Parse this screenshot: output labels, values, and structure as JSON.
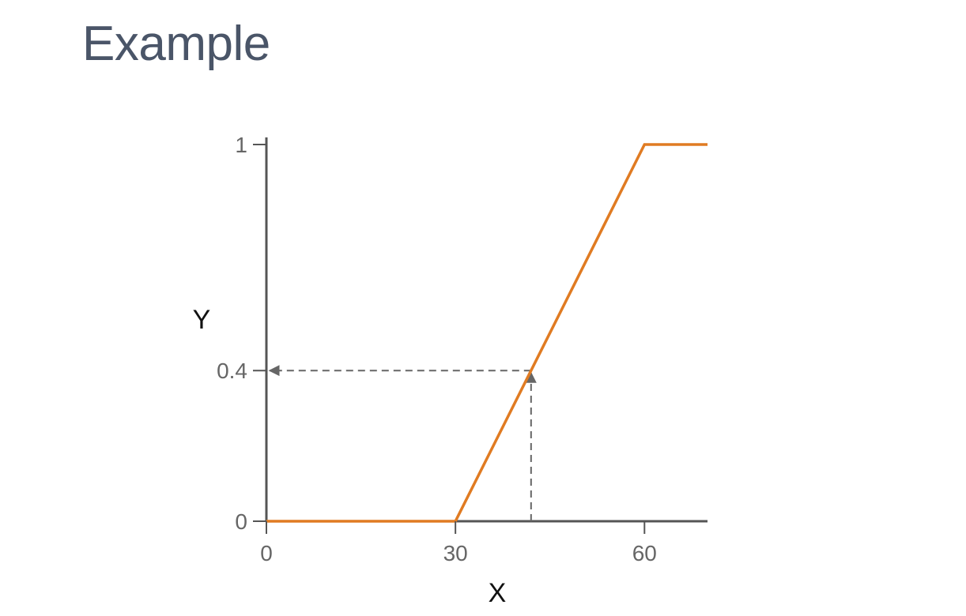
{
  "header": {
    "title": "Example"
  },
  "chart_data": {
    "type": "line",
    "xlabel": "X",
    "ylabel": "Y",
    "xlim": [
      0,
      70
    ],
    "ylim": [
      0,
      1
    ],
    "x_ticks": [
      {
        "value": 0,
        "label": "0"
      },
      {
        "value": 30,
        "label": "30"
      },
      {
        "value": 60,
        "label": "60"
      }
    ],
    "y_ticks": [
      {
        "value": 0,
        "label": "0"
      },
      {
        "value": 0.4,
        "label": "0.4"
      },
      {
        "value": 1,
        "label": "1"
      }
    ],
    "series": [
      {
        "points": [
          {
            "x": 0,
            "y": 0
          },
          {
            "x": 30,
            "y": 0
          },
          {
            "x": 42,
            "y": 0.4
          },
          {
            "x": 60,
            "y": 1
          },
          {
            "x": 70,
            "y": 1
          }
        ]
      }
    ],
    "annotation": {
      "x": 42,
      "y": 0.4
    },
    "colors": {
      "series": "#e07b22",
      "axis": "#555555",
      "guide": "#666666"
    },
    "grid": false
  }
}
